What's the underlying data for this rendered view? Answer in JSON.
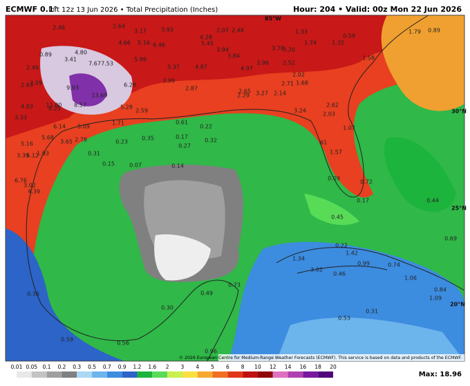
{
  "header": {
    "model": "ECMWF 0.1°",
    "run": "Init 12z 13 Jun 2026 • Total Precipitation (Inches)",
    "valid": "Hour: 204 • Valid: 00z Mon 22 Jun 2026"
  },
  "legend": {
    "ticks": [
      0.01,
      0.05,
      0.1,
      0.2,
      0.3,
      0.5,
      0.7,
      0.9,
      1.2,
      1.6,
      2,
      3,
      4,
      5,
      6,
      8,
      10,
      12,
      14,
      16,
      18,
      20
    ],
    "colors": [
      "#e8e8e8",
      "#c4c4c4",
      "#a0a0a0",
      "#808080",
      "#a8d8f4",
      "#6cb4ec",
      "#3c8ce0",
      "#2c64c8",
      "#1cb43c",
      "#58dc58",
      "#c8f050",
      "#f8e040",
      "#f8a830",
      "#f07020",
      "#e03818",
      "#c01010",
      "#900808",
      "#e070c0",
      "#b040b0",
      "#7818a0",
      "#50087c"
    ],
    "max": "Max: 18.96"
  },
  "credit": "© 2026 European Centre for Medium-Range Weather Forecasts (ECMWF). This service is based on data and products of the ECMWF.",
  "geo_labels": [
    "85°W",
    "30°N",
    "25°N",
    "20°N"
  ],
  "point_values": [
    "2.46",
    "2.64",
    "3.17",
    "3.93",
    "2.07",
    "2.48",
    "1.33",
    "1.79",
    "0.89",
    "4.66",
    "5.16",
    "6.46",
    "4.28",
    "5.45",
    "0.59",
    "1.74",
    "1.32",
    "0.89",
    "4.80",
    "3.41",
    "7.67",
    "7.53",
    "3.94",
    "3.84",
    "3.78",
    "3.20",
    "5.99",
    "5.37",
    "4.87",
    "4.97",
    "3.96",
    "2.52",
    "1.58",
    "2.49",
    "9.93",
    "13.69",
    "2.09",
    "2.63",
    "6.28",
    "3.99",
    "2.87",
    "2.02",
    "1.68",
    "11.80",
    "8.57",
    "2.65",
    "3.27",
    "2.14",
    "2.71",
    "8.25",
    "4.03",
    "5.28",
    "2.59",
    "2.29",
    "3.24",
    "2.62",
    "2.03",
    "3.33",
    "6.14",
    "5.09",
    "1.71",
    "0.61",
    "0.22",
    "5.68",
    "3.65",
    "2.78",
    "0.23",
    "0.35",
    "0.17",
    "0.32",
    "0.27",
    "1.07",
    "5.16",
    "3.39",
    "5.12",
    "1.93",
    "0.31",
    "0.15",
    "0.07",
    "0.14",
    ".61",
    "1.57",
    "6.76",
    "3.02",
    "4.39",
    "0.72",
    "0.09",
    "0.17",
    "0.45",
    "0.44",
    "0.69",
    "0.22",
    "1.42",
    "1.34",
    "3.02",
    "0.46",
    "0.99",
    "0.74",
    "1.06",
    "0.84",
    "1.09",
    "0.36",
    "0.30",
    "0.49",
    "0.53",
    "0.31",
    "0.59",
    "0.56",
    "0.96",
    "0.73"
  ]
}
